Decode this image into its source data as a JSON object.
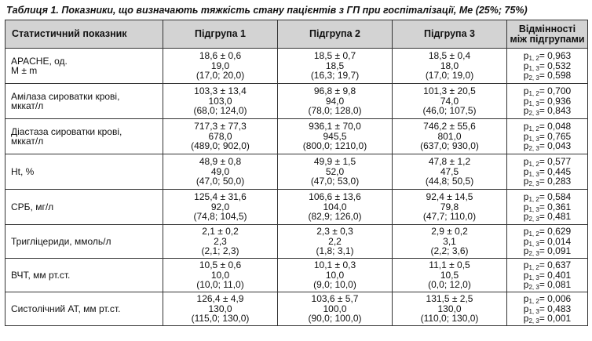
{
  "caption": "Таблиця 1. Показники, що визначають тяжкість стану пацієнтів з ГП при госпіталізації, Ме (25%; 75%)",
  "headers": {
    "indicator": "Статистичний показник",
    "group1": "Підгрупа 1",
    "group2": "Підгрупа 2",
    "group3": "Підгрупа 3",
    "diff_line1": "Відмінності",
    "diff_line2": "між підгрупами"
  },
  "rows": [
    {
      "label": "APACHE, од.",
      "label2": "M ± m",
      "g1": [
        "18,6 ± 0,6",
        "19,0",
        "(17,0; 20,0)"
      ],
      "g2": [
        "18,5 ± 0,7",
        "18,5",
        "(16,3; 19,7)"
      ],
      "g3": [
        "18,5 ± 0,4",
        "18,0",
        "(17,0; 19,0)"
      ],
      "p": [
        "= 0,963",
        "= 0,532",
        "= 0,598"
      ]
    },
    {
      "label": "Амілаза сироватки крові,",
      "label2": "мккат/л",
      "g1": [
        "103,3 ± 13,4",
        "103,0",
        "(68,0; 124,0)"
      ],
      "g2": [
        "96,8 ± 9,8",
        "94,0",
        "(78,0; 128,0)"
      ],
      "g3": [
        "101,3 ± 20,5",
        "74,0",
        "(46,0; 107,5)"
      ],
      "p": [
        "= 0,700",
        "= 0,936",
        "= 0,843"
      ]
    },
    {
      "label": "Діастаза сироватки крові,",
      "label2": "мккат/л",
      "g1": [
        "717,3 ± 77,3",
        "678,0",
        "(489,0; 902,0)"
      ],
      "g2": [
        "936,1 ± 70,0",
        "945,5",
        "(800,0; 1210,0)"
      ],
      "g3": [
        "746,2 ± 55,6",
        "801,0",
        "(637,0; 930,0)"
      ],
      "p": [
        "= 0,048",
        "= 0,765",
        "= 0,043"
      ]
    },
    {
      "label": "Ht, %",
      "label2": "",
      "g1": [
        "48,9 ± 0,8",
        "49,0",
        "(47,0; 50,0)"
      ],
      "g2": [
        "49,9 ± 1,5",
        "52,0",
        "(47,0; 53,0)"
      ],
      "g3": [
        "47,8 ± 1,2",
        "47,5",
        "(44,8; 50,5)"
      ],
      "p": [
        "= 0,577",
        "= 0,445",
        "= 0,283"
      ]
    },
    {
      "label": "СРБ, мг/л",
      "label2": "",
      "g1": [
        "125,4 ± 31,6",
        "92,0",
        "(74,8; 104,5)"
      ],
      "g2": [
        "106,6 ± 13,6",
        "104,0",
        "(82,9; 126,0)"
      ],
      "g3": [
        "92,4 ± 14,5",
        "79,8",
        "(47,7; 110,0)"
      ],
      "p": [
        "= 0,584",
        "= 0,361",
        "= 0,481"
      ]
    },
    {
      "label": "Тригліцериди, ммоль/л",
      "label2": "",
      "g1": [
        "2,1 ± 0,2",
        "2,3",
        "(2,1; 2,3)"
      ],
      "g2": [
        "2,3 ± 0,3",
        "2,2",
        "(1,8; 3,1)"
      ],
      "g3": [
        "2,9 ± 0,2",
        "3,1",
        "(2,2; 3,6)"
      ],
      "p": [
        "= 0,629",
        "= 0,014",
        "= 0,091"
      ]
    },
    {
      "label": "ВЧТ, мм рт.ст.",
      "label2": "",
      "g1": [
        "10,5 ± 0,6",
        "10,0",
        "(10,0; 11,0)"
      ],
      "g2": [
        "10,1 ± 0,3",
        "10,0",
        "(9,0; 10,0)"
      ],
      "g3": [
        "11,1 ± 0,5",
        "10,5",
        "(0,0; 12,0)"
      ],
      "p": [
        "= 0,637",
        "= 0,401",
        "= 0,081"
      ]
    },
    {
      "label": "Систолічний АТ, мм рт.ст.",
      "label2": "",
      "g1": [
        "126,4 ± 4,9",
        "130,0",
        "(115,0; 130,0)"
      ],
      "g2": [
        "103,6 ± 5,7",
        "100,0",
        "(90,0; 100,0)"
      ],
      "g3": [
        "131,5 ± 2,5",
        "130,0",
        "(110,0; 130,0)"
      ],
      "p": [
        "= 0,006",
        "= 0,483",
        "= 0,001"
      ]
    }
  ],
  "p_symbol": "p",
  "p_subscripts": [
    "1, 2",
    "1, 3",
    "2, 3"
  ]
}
